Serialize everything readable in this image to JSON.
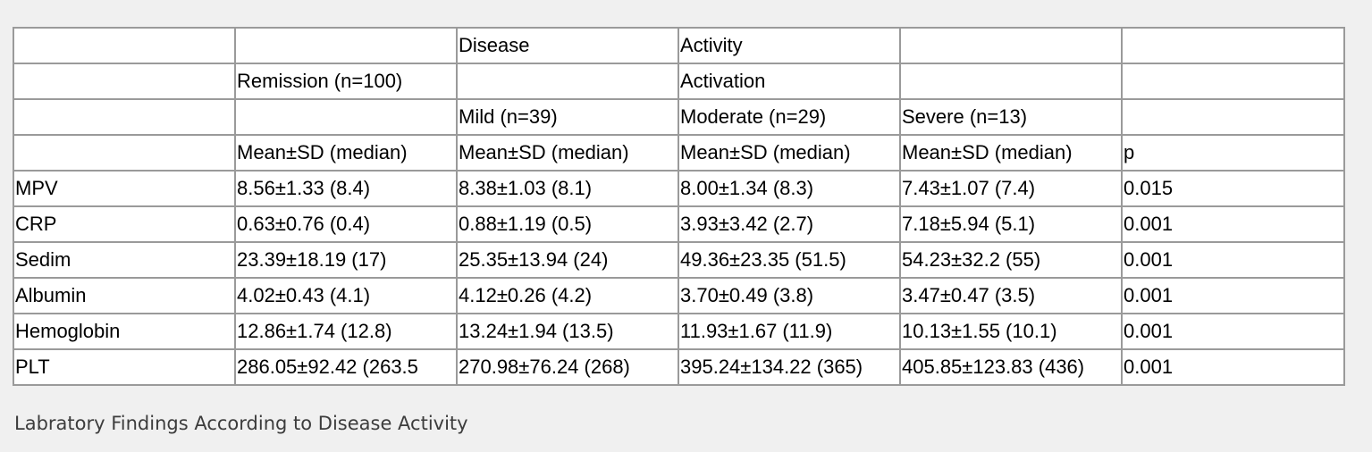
{
  "table": {
    "header_rows": [
      [
        "",
        "",
        "Disease",
        "Activity",
        "",
        ""
      ],
      [
        "",
        "Remission (n=100)",
        "",
        "Activation",
        "",
        ""
      ],
      [
        "",
        "",
        "Mild (n=39)",
        "Moderate (n=29)",
        "Severe (n=13)",
        ""
      ],
      [
        "",
        "Mean±SD (median)",
        "Mean±SD (median)",
        "Mean±SD (median)",
        "Mean±SD (median)",
        "p"
      ]
    ],
    "body_rows": [
      [
        "MPV",
        "8.56±1.33 (8.4)",
        "8.38±1.03 (8.1)",
        "8.00±1.34 (8.3)",
        "7.43±1.07 (7.4)",
        "0.015"
      ],
      [
        "CRP",
        "0.63±0.76 (0.4)",
        "0.88±1.19 (0.5)",
        "3.93±3.42 (2.7)",
        "7.18±5.94 (5.1)",
        "0.001"
      ],
      [
        "Sedim",
        "23.39±18.19 (17)",
        "25.35±13.94 (24)",
        "49.36±23.35 (51.5)",
        "54.23±32.2 (55)",
        "0.001"
      ],
      [
        "Albumin",
        "4.02±0.43 (4.1)",
        "4.12±0.26 (4.2)",
        "3.70±0.49 (3.8)",
        "3.47±0.47 (3.5)",
        "0.001"
      ],
      [
        "Hemoglobin",
        "12.86±1.74 (12.8)",
        "13.24±1.94 (13.5)",
        "11.93±1.67 (11.9)",
        "10.13±1.55 (10.1)",
        "0.001"
      ],
      [
        "PLT",
        "286.05±92.42 (263.5",
        "270.98±76.24 (268)",
        "395.24±134.22 (365)",
        "405.85±123.83 (436)",
        "0.001"
      ]
    ]
  },
  "caption": "Labratory Findings According to Disease Activity"
}
